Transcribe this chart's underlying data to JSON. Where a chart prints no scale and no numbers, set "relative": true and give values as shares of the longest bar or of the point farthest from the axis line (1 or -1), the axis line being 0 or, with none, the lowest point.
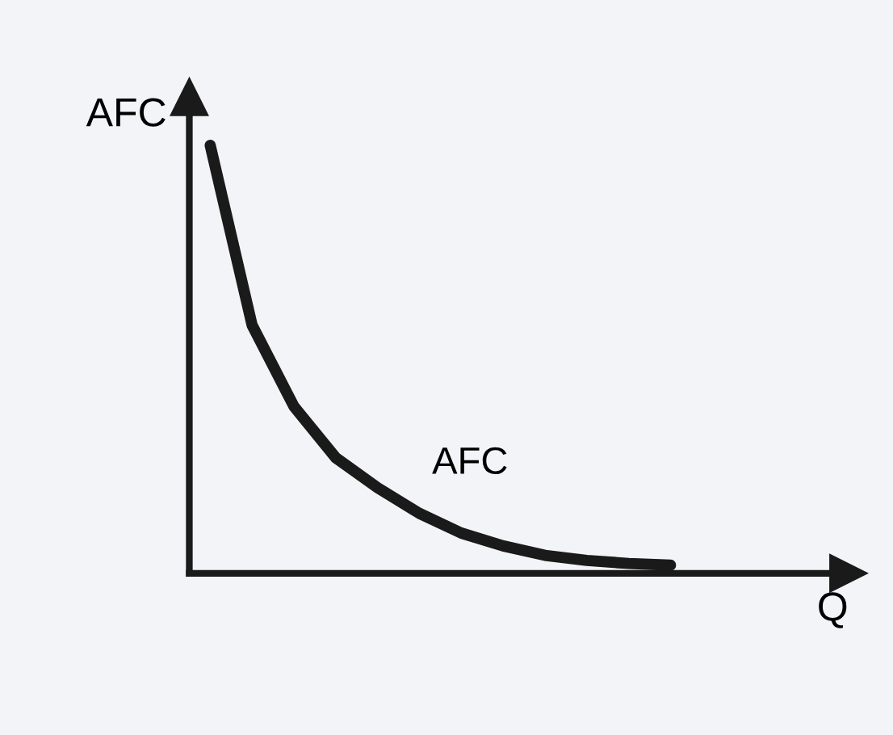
{
  "chart_data": {
    "type": "line",
    "relative": true,
    "xlabel": "Q",
    "ylabel": "AFC",
    "categories": [
      null,
      null,
      null,
      null,
      null,
      null,
      null,
      null,
      null,
      null,
      null,
      null
    ],
    "series": [
      {
        "name": "AFC",
        "color": "#1a1a1a",
        "values": [
          1,
          0.58,
          0.39,
          0.27,
          0.2,
          0.14,
          0.094,
          0.064,
          0.042,
          0.03,
          0.023,
          0.019
        ]
      }
    ],
    "legend": false,
    "marker": "none",
    "line_style": "solid"
  }
}
